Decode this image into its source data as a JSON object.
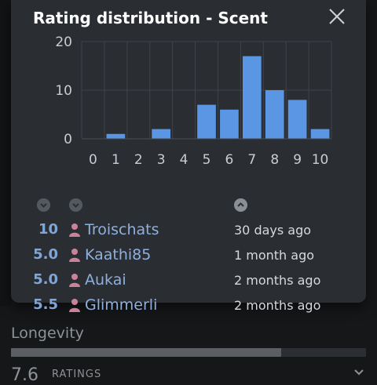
{
  "modal": {
    "title": "Rating distribution - Scent",
    "close_icon": "close-icon"
  },
  "chart_data": {
    "type": "bar",
    "categories": [
      "0",
      "1",
      "2",
      "3",
      "4",
      "5",
      "6",
      "7",
      "8",
      "9",
      "10"
    ],
    "values": [
      0,
      1,
      0,
      2,
      0,
      7,
      6,
      17,
      10,
      8,
      2
    ],
    "ylim": [
      0,
      20
    ],
    "yticks": [
      0,
      10,
      20
    ],
    "grid": true,
    "bar_color": "#5a96e3"
  },
  "sort_controls": {
    "score_icon": "chevron-down-icon",
    "user_icon": "chevron-down-icon",
    "date_icon": "chevron-up-icon"
  },
  "reviews": [
    {
      "score": "10",
      "user": "Troischats",
      "time": "30 days ago"
    },
    {
      "score": "5.0",
      "user": "Kaathi85",
      "time": "1 month ago"
    },
    {
      "score": "5.0",
      "user": "Aukai",
      "time": "2 months ago"
    },
    {
      "score": "5.5",
      "user": "Glimmerli",
      "time": "2 months ago"
    }
  ],
  "background": {
    "section_label": "Longevity",
    "progress": 0.76,
    "partial_score": "7.6",
    "partial_text": "RATINGS"
  },
  "colors": {
    "accent": "#5a96e3",
    "user_icon": "#c9829a",
    "modal_bg": "#2a2d32"
  }
}
